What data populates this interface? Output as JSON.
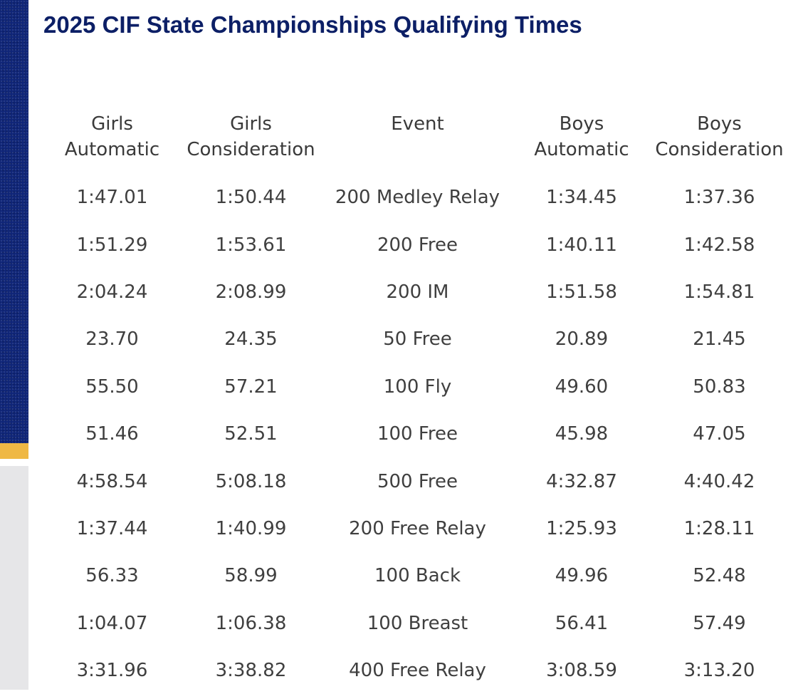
{
  "page": {
    "title": "2025 CIF State Championships Qualifying Times"
  },
  "table": {
    "headers": [
      [
        "Girls",
        "Automatic"
      ],
      [
        "Girls",
        "Consideration"
      ],
      [
        "Event",
        ""
      ],
      [
        "Boys",
        "Automatic"
      ],
      [
        "Boys",
        "Consideration"
      ]
    ],
    "rows": [
      [
        "1:47.01",
        "1:50.44",
        "200 Medley Relay",
        "1:34.45",
        "1:37.36"
      ],
      [
        "1:51.29",
        "1:53.61",
        "200 Free",
        "1:40.11",
        "1:42.58"
      ],
      [
        "2:04.24",
        "2:08.99",
        "200 IM",
        "1:51.58",
        "1:54.81"
      ],
      [
        "23.70",
        "24.35",
        "50 Free",
        "20.89",
        "21.45"
      ],
      [
        "55.50",
        "57.21",
        "100 Fly",
        "49.60",
        "50.83"
      ],
      [
        "51.46",
        "52.51",
        "100 Free",
        "45.98",
        "47.05"
      ],
      [
        "4:58.54",
        "5:08.18",
        "500 Free",
        "4:32.87",
        "4:40.42"
      ],
      [
        "1:37.44",
        "1:40.99",
        "200 Free Relay",
        "1:25.93",
        "1:28.11"
      ],
      [
        "56.33",
        "58.99",
        "100 Back",
        "49.96",
        "52.48"
      ],
      [
        "1:04.07",
        "1:06.38",
        "100 Breast",
        "56.41",
        "57.49"
      ],
      [
        "3:31.96",
        "3:38.82",
        "400 Free Relay",
        "3:08.59",
        "3:13.20"
      ]
    ]
  },
  "colors": {
    "title": "#0c1f66",
    "band_navy": "#0f2578",
    "band_gold": "#efb844",
    "band_gray": "#e6e6e8",
    "text": "#3f3f3f"
  }
}
